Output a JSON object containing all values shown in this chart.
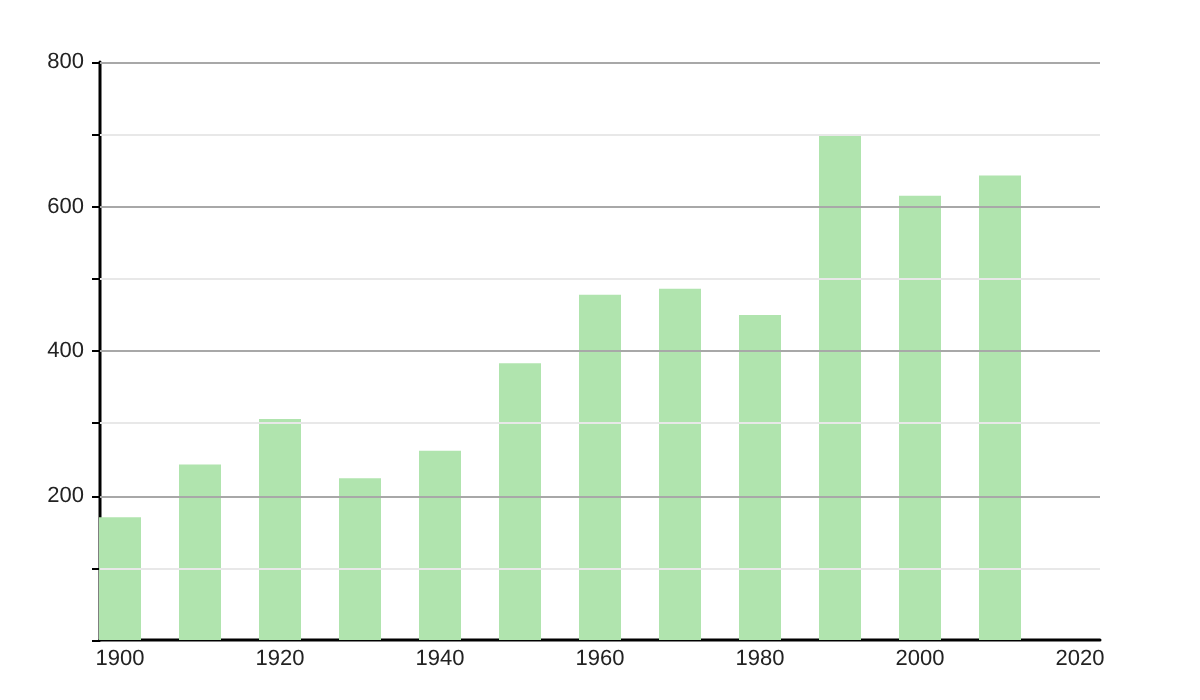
{
  "chart_data": {
    "type": "bar",
    "x": [
      1900,
      1910,
      1920,
      1930,
      1940,
      1950,
      1960,
      1970,
      1980,
      1990,
      2000,
      2010
    ],
    "values": [
      170,
      243,
      306,
      224,
      262,
      383,
      478,
      486,
      450,
      698,
      615,
      643
    ],
    "color": "#b0e4ae",
    "xlim": [
      1897.5,
      2022.5
    ],
    "xticks": [
      1900,
      1920,
      1940,
      1960,
      1980,
      2000,
      2020
    ],
    "ylim": [
      0,
      800
    ],
    "yticks": [
      {
        "value": 0,
        "label": null
      },
      {
        "value": 100,
        "label": null
      },
      200,
      {
        "value": 300,
        "label": null
      },
      400,
      {
        "value": 500,
        "label": null
      },
      600,
      {
        "value": 700,
        "label": null
      },
      800
    ],
    "grid": "y"
  }
}
